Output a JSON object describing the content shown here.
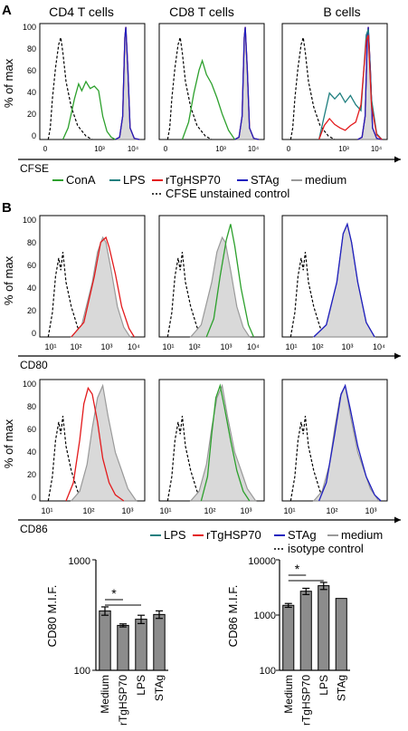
{
  "panel_letters": {
    "a": "A",
    "b": "B"
  },
  "panel_a": {
    "titles": [
      "CD4 T cells",
      "CD8 T cells",
      "B cells"
    ],
    "ylabel": "% of max",
    "xlabel": "CFSE",
    "yticks": [
      "0",
      "20",
      "40",
      "60",
      "80",
      "100"
    ],
    "xticks": [
      "0",
      "10³",
      "10⁴"
    ],
    "legend_row1": [
      {
        "label": "ConA",
        "color": "#2ca02c"
      },
      {
        "label": "LPS",
        "color": "#1f7f7f"
      },
      {
        "label": "rTgHSP70",
        "color": "#e31a1c"
      },
      {
        "label": "STAg",
        "color": "#1f1fbf"
      },
      {
        "label": "medium",
        "color": "#999999"
      }
    ],
    "legend_row2": {
      "label": "CFSE unstained control"
    }
  },
  "panel_b": {
    "ylabel": "% of max",
    "yticks": [
      "0",
      "20",
      "40",
      "60",
      "80",
      "100"
    ],
    "row1_xlabel": "CD80",
    "row2_xlabel": "CD86",
    "row1_xticks": [
      "10¹",
      "10²",
      "10³",
      "10⁴"
    ],
    "row2_xticks": [
      "10¹",
      "10²",
      "10³"
    ],
    "legend_row1": [
      {
        "label": "LPS",
        "color": "#1f7f7f"
      },
      {
        "label": "rTgHSP70",
        "color": "#e31a1c"
      },
      {
        "label": "STAg",
        "color": "#1f1fbf"
      },
      {
        "label": "medium",
        "color": "#999999"
      }
    ],
    "legend_row2": {
      "label": "isotype control"
    }
  },
  "chart_data": [
    {
      "type": "bar",
      "ylabel": "CD80 M.I.F.",
      "yscale": "log",
      "ylim": [
        100,
        1000
      ],
      "yticks": [
        "1000",
        "100"
      ],
      "categories": [
        "Medium",
        "rTgHSP70",
        "LPS",
        "STAg"
      ],
      "values": [
        345,
        255,
        290,
        320
      ],
      "errors": [
        30,
        8,
        25,
        25
      ],
      "significance": "*"
    },
    {
      "type": "bar",
      "ylabel": "CD86 M.I.F.",
      "yscale": "log",
      "ylim": [
        100,
        10000
      ],
      "yticks": [
        "10000",
        "1000",
        "100"
      ],
      "categories": [
        "Medium",
        "rTgHSP70",
        "LPS",
        "STAg"
      ],
      "values": [
        1500,
        2700,
        3400,
        2000
      ],
      "errors": [
        120,
        350,
        500,
        0
      ],
      "significance": "*"
    }
  ]
}
